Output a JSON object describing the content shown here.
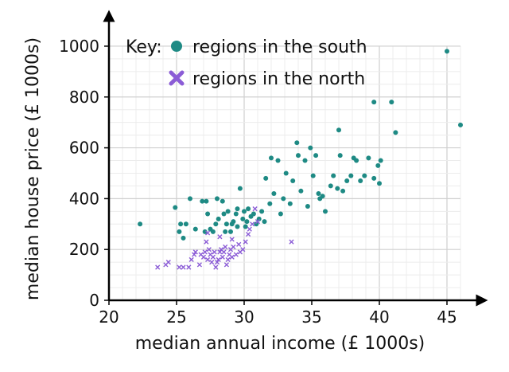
{
  "chart_data": {
    "type": "scatter",
    "xlabel": "median annual income (£ 1000s)",
    "ylabel": "median house price (£ 1000s)",
    "xlim": [
      20,
      47
    ],
    "ylim": [
      0,
      1050
    ],
    "xticks": [
      "20",
      "25",
      "30",
      "35",
      "40",
      "45"
    ],
    "yticks": [
      "0",
      "200",
      "400",
      "600",
      "800",
      "1000"
    ],
    "grid": true,
    "legend": {
      "placement": "top-left",
      "title": "Key:",
      "entries": [
        "regions in the south",
        "regions in the north"
      ]
    },
    "series": [
      {
        "name": "regions in the south",
        "marker": "circle",
        "color": "#1e8a84",
        "points": [
          [
            22.3,
            300
          ],
          [
            24.9,
            365
          ],
          [
            25.3,
            300
          ],
          [
            25.2,
            270
          ],
          [
            25.7,
            300
          ],
          [
            25.5,
            245
          ],
          [
            26.0,
            400
          ],
          [
            26.4,
            280
          ],
          [
            26.9,
            390
          ],
          [
            27.1,
            270
          ],
          [
            27.2,
            390
          ],
          [
            27.3,
            340
          ],
          [
            27.5,
            280
          ],
          [
            27.7,
            270
          ],
          [
            27.9,
            300
          ],
          [
            28.0,
            400
          ],
          [
            28.1,
            320
          ],
          [
            28.4,
            390
          ],
          [
            28.5,
            340
          ],
          [
            28.6,
            270
          ],
          [
            28.7,
            300
          ],
          [
            28.8,
            350
          ],
          [
            29.0,
            270
          ],
          [
            29.1,
            300
          ],
          [
            29.2,
            310
          ],
          [
            29.4,
            340
          ],
          [
            29.5,
            360
          ],
          [
            29.7,
            440
          ],
          [
            29.9,
            320
          ],
          [
            30.0,
            350
          ],
          [
            30.1,
            290
          ],
          [
            30.3,
            360
          ],
          [
            30.5,
            330
          ],
          [
            30.7,
            340
          ],
          [
            30.9,
            300
          ],
          [
            31.1,
            320
          ],
          [
            31.3,
            350
          ],
          [
            31.5,
            310
          ],
          [
            31.6,
            480
          ],
          [
            31.9,
            380
          ],
          [
            32.0,
            560
          ],
          [
            32.2,
            420
          ],
          [
            32.5,
            550
          ],
          [
            32.7,
            340
          ],
          [
            32.9,
            400
          ],
          [
            33.1,
            500
          ],
          [
            33.4,
            380
          ],
          [
            33.6,
            470
          ],
          [
            33.9,
            620
          ],
          [
            34.0,
            570
          ],
          [
            34.2,
            430
          ],
          [
            34.5,
            550
          ],
          [
            34.7,
            370
          ],
          [
            34.9,
            600
          ],
          [
            35.1,
            490
          ],
          [
            35.3,
            570
          ],
          [
            35.5,
            420
          ],
          [
            35.6,
            400
          ],
          [
            35.8,
            410
          ],
          [
            36.0,
            350
          ],
          [
            36.4,
            450
          ],
          [
            36.6,
            490
          ],
          [
            36.9,
            440
          ],
          [
            37.0,
            670
          ],
          [
            37.1,
            570
          ],
          [
            37.3,
            430
          ],
          [
            37.6,
            470
          ],
          [
            37.9,
            490
          ],
          [
            38.1,
            560
          ],
          [
            38.3,
            550
          ],
          [
            38.6,
            470
          ],
          [
            38.9,
            490
          ],
          [
            39.2,
            560
          ],
          [
            39.6,
            480
          ],
          [
            39.9,
            530
          ],
          [
            40.1,
            550
          ],
          [
            40.0,
            460
          ],
          [
            41.2,
            660
          ],
          [
            39.6,
            780
          ],
          [
            40.9,
            780
          ],
          [
            45.0,
            980
          ],
          [
            46.0,
            690
          ],
          [
            29.5,
            290
          ],
          [
            30.2,
            310
          ]
        ]
      },
      {
        "name": "regions in the north",
        "marker": "cross",
        "color": "#8b5cd6",
        "points": [
          [
            23.6,
            130
          ],
          [
            24.2,
            140
          ],
          [
            24.4,
            150
          ],
          [
            25.2,
            130
          ],
          [
            25.5,
            130
          ],
          [
            25.9,
            130
          ],
          [
            26.1,
            160
          ],
          [
            26.3,
            180
          ],
          [
            26.4,
            190
          ],
          [
            26.7,
            140
          ],
          [
            26.8,
            180
          ],
          [
            27.0,
            170
          ],
          [
            27.1,
            190
          ],
          [
            27.2,
            230
          ],
          [
            27.3,
            160
          ],
          [
            27.4,
            200
          ],
          [
            27.5,
            180
          ],
          [
            27.6,
            150
          ],
          [
            27.7,
            170
          ],
          [
            27.8,
            190
          ],
          [
            27.9,
            130
          ],
          [
            28.0,
            150
          ],
          [
            28.1,
            160
          ],
          [
            28.2,
            190
          ],
          [
            28.3,
            200
          ],
          [
            28.4,
            170
          ],
          [
            28.5,
            190
          ],
          [
            28.6,
            210
          ],
          [
            28.7,
            140
          ],
          [
            28.8,
            160
          ],
          [
            28.9,
            180
          ],
          [
            29.0,
            200
          ],
          [
            29.1,
            170
          ],
          [
            29.2,
            210
          ],
          [
            29.4,
            180
          ],
          [
            29.6,
            220
          ],
          [
            29.7,
            190
          ],
          [
            29.9,
            200
          ],
          [
            30.1,
            230
          ],
          [
            30.3,
            260
          ],
          [
            30.4,
            280
          ],
          [
            30.6,
            300
          ],
          [
            30.8,
            360
          ],
          [
            31.0,
            310
          ],
          [
            33.5,
            230
          ],
          [
            27.3,
            265
          ],
          [
            28.2,
            250
          ],
          [
            29.1,
            240
          ]
        ]
      }
    ]
  }
}
